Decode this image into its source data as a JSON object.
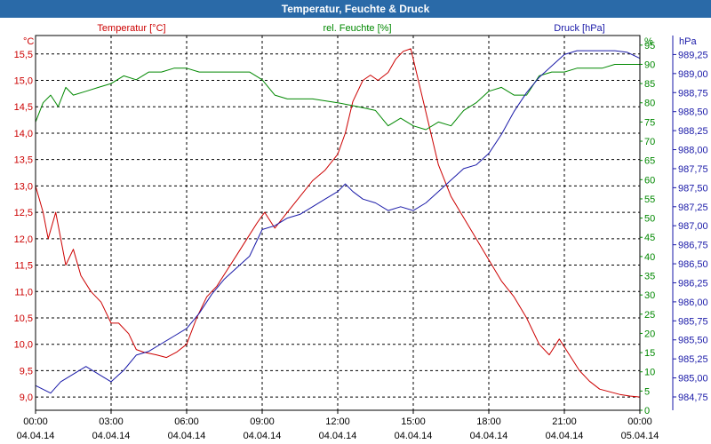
{
  "chart_data": {
    "type": "line",
    "title": "Temperatur, Feuchte & Druck",
    "x_ticks": [
      {
        "time": "00:00",
        "date": "04.04.14"
      },
      {
        "time": "03:00",
        "date": "04.04.14"
      },
      {
        "time": "06:00",
        "date": "04.04.14"
      },
      {
        "time": "09:00",
        "date": "04.04.14"
      },
      {
        "time": "12:00",
        "date": "04.04.14"
      },
      {
        "time": "15:00",
        "date": "04.04.14"
      },
      {
        "time": "18:00",
        "date": "04.04.14"
      },
      {
        "time": "21:00",
        "date": "04.04.14"
      },
      {
        "time": "00:00",
        "date": "05.04.14"
      }
    ],
    "xlim": [
      0,
      24
    ],
    "axes": {
      "temperature": {
        "unit": "°C",
        "legend": "Temperatur [°C]",
        "color": "#cc0000",
        "ylim": [
          8.75,
          15.85
        ],
        "ticks": [
          "9,0",
          "9,5",
          "10,0",
          "10,5",
          "11,0",
          "11,5",
          "12,0",
          "12,5",
          "13,0",
          "13,5",
          "14,0",
          "14,5",
          "15,0",
          "15,5"
        ],
        "tick_values": [
          9.0,
          9.5,
          10.0,
          10.5,
          11.0,
          11.5,
          12.0,
          12.5,
          13.0,
          13.5,
          14.0,
          14.5,
          15.0,
          15.5
        ]
      },
      "humidity": {
        "unit": "%",
        "legend": "rel. Feuchte [%]",
        "color": "#008800",
        "ylim": [
          0,
          97.5
        ],
        "ticks": [
          "0",
          "5",
          "10",
          "15",
          "20",
          "25",
          "30",
          "35",
          "40",
          "45",
          "50",
          "55",
          "60",
          "65",
          "70",
          "75",
          "80",
          "85",
          "90",
          "95"
        ],
        "tick_values": [
          0,
          5,
          10,
          15,
          20,
          25,
          30,
          35,
          40,
          45,
          50,
          55,
          60,
          65,
          70,
          75,
          80,
          85,
          90,
          95
        ]
      },
      "pressure": {
        "unit": "hPa",
        "legend": "Druck [hPa]",
        "color": "#1a1aa8",
        "ylim": [
          984.575,
          989.5
        ],
        "ticks": [
          "984,75",
          "985,00",
          "985,25",
          "985,50",
          "985,75",
          "986,00",
          "986,25",
          "986,50",
          "986,75",
          "987,00",
          "987,25",
          "987,50",
          "987,75",
          "988,00",
          "988,25",
          "988,50",
          "988,75",
          "989,00",
          "989,25"
        ],
        "tick_values": [
          984.75,
          985.0,
          985.25,
          985.5,
          985.75,
          986.0,
          986.25,
          986.5,
          986.75,
          987.0,
          987.25,
          987.5,
          987.75,
          988.0,
          988.25,
          988.5,
          988.75,
          989.0,
          989.25
        ]
      }
    },
    "series": [
      {
        "name": "Temperatur [°C]",
        "axis": "temperature",
        "color": "#cc0000",
        "x": [
          0,
          0.3,
          0.5,
          0.8,
          1.2,
          1.5,
          1.8,
          2.2,
          2.6,
          3.0,
          3.3,
          3.7,
          4.0,
          4.3,
          4.8,
          5.2,
          5.6,
          6.0,
          6.4,
          6.8,
          7.2,
          7.6,
          8.0,
          8.4,
          8.8,
          9.1,
          9.5,
          10.0,
          10.5,
          11.0,
          11.5,
          12.0,
          12.3,
          12.6,
          13.0,
          13.3,
          13.6,
          14.0,
          14.3,
          14.6,
          14.9,
          15.2,
          15.6,
          16.0,
          16.5,
          17.0,
          17.5,
          18.0,
          18.5,
          19.0,
          19.5,
          20.0,
          20.4,
          20.8,
          21.2,
          21.6,
          22.0,
          22.4,
          22.8,
          23.2,
          23.6,
          24.0
        ],
        "values": [
          13.0,
          12.5,
          12.0,
          12.5,
          11.5,
          11.8,
          11.3,
          11.0,
          10.8,
          10.4,
          10.4,
          10.2,
          9.9,
          9.85,
          9.8,
          9.75,
          9.85,
          10.0,
          10.5,
          10.9,
          11.1,
          11.4,
          11.7,
          12.0,
          12.3,
          12.5,
          12.2,
          12.5,
          12.8,
          13.1,
          13.3,
          13.6,
          14.0,
          14.6,
          15.0,
          15.1,
          15.0,
          15.15,
          15.4,
          15.55,
          15.6,
          15.0,
          14.2,
          13.4,
          12.8,
          12.4,
          12.0,
          11.6,
          11.2,
          10.9,
          10.5,
          10.0,
          9.8,
          10.1,
          9.8,
          9.5,
          9.3,
          9.15,
          9.1,
          9.05,
          9.02,
          9.0
        ]
      },
      {
        "name": "rel. Feuchte [%]",
        "axis": "humidity",
        "color": "#008800",
        "x": [
          0,
          0.3,
          0.6,
          0.9,
          1.2,
          1.5,
          2.0,
          2.5,
          3.0,
          3.5,
          4.0,
          4.5,
          5.0,
          5.5,
          6.0,
          6.5,
          7.0,
          7.5,
          8.0,
          8.5,
          9.0,
          9.5,
          10.0,
          11.0,
          12.0,
          12.8,
          13.5,
          14.0,
          14.5,
          15.0,
          15.5,
          16.0,
          16.5,
          17.0,
          17.5,
          18.0,
          18.5,
          19.0,
          19.5,
          20.0,
          20.5,
          21.0,
          21.5,
          22.0,
          22.5,
          23.0,
          23.5,
          24.0
        ],
        "values": [
          75,
          80,
          82,
          79,
          84,
          82,
          83,
          84,
          85,
          87,
          86,
          88,
          88,
          89,
          89,
          88,
          88,
          88,
          88,
          88,
          86,
          82,
          81,
          81,
          80,
          79,
          78,
          74,
          76,
          74,
          73,
          75,
          74,
          78,
          80,
          83,
          84,
          82,
          82,
          87,
          88,
          88,
          89,
          89,
          89,
          90,
          90,
          90
        ]
      },
      {
        "name": "Druck [hPa]",
        "axis": "pressure",
        "color": "#1a1aa8",
        "x": [
          0,
          0.3,
          0.6,
          1.0,
          1.5,
          2.0,
          2.5,
          3.0,
          3.5,
          4.0,
          4.5,
          5.0,
          5.5,
          6.0,
          6.5,
          7.0,
          7.5,
          8.0,
          8.5,
          9.0,
          9.5,
          10.0,
          10.5,
          11.0,
          11.5,
          12.0,
          12.3,
          12.6,
          13.0,
          13.5,
          14.0,
          14.5,
          15.0,
          15.5,
          16.0,
          16.5,
          17.0,
          17.5,
          18.0,
          18.5,
          19.0,
          19.5,
          20.0,
          20.5,
          21.0,
          21.5,
          22.0,
          22.5,
          23.0,
          23.5,
          24.0
        ],
        "values": [
          984.9,
          984.85,
          984.8,
          984.95,
          985.05,
          985.15,
          985.05,
          984.95,
          985.1,
          985.3,
          985.35,
          985.45,
          985.55,
          985.65,
          985.85,
          986.1,
          986.3,
          986.45,
          986.6,
          986.95,
          987.0,
          987.1,
          987.15,
          987.25,
          987.35,
          987.45,
          987.55,
          987.45,
          987.35,
          987.3,
          987.2,
          987.25,
          987.2,
          987.3,
          987.45,
          987.6,
          987.75,
          987.8,
          987.95,
          988.2,
          988.5,
          988.75,
          988.95,
          989.1,
          989.25,
          989.3,
          989.3,
          989.3,
          989.3,
          989.28,
          989.2
        ]
      }
    ]
  }
}
